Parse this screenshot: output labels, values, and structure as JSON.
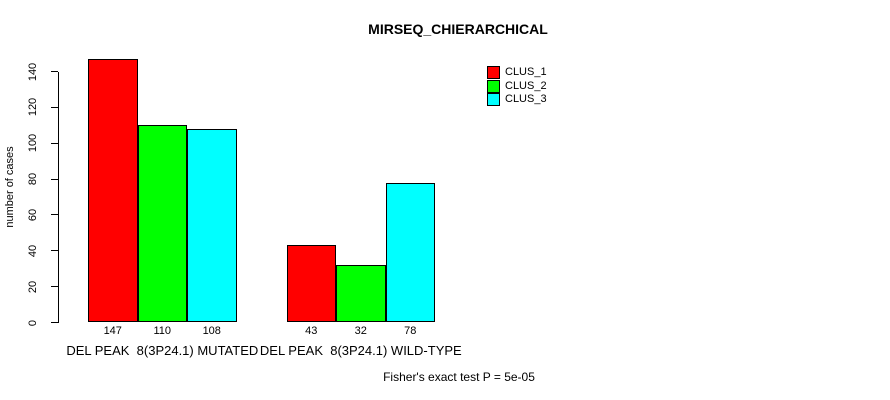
{
  "chart_data": {
    "type": "bar",
    "title": "MIRSEQ_CHIERARCHICAL",
    "ylabel": "number of cases",
    "xlabel": "",
    "categories": [
      "DEL PEAK  8(3P24.1) MUTATED",
      "DEL PEAK  8(3P24.1) WILD-TYPE"
    ],
    "series": [
      {
        "name": "CLUS_1",
        "color": "#ff0000",
        "values": [
          147,
          43
        ]
      },
      {
        "name": "CLUS_2",
        "color": "#00ff00",
        "values": [
          110,
          32
        ]
      },
      {
        "name": "CLUS_3",
        "color": "#00ffff",
        "values": [
          108,
          78
        ]
      }
    ],
    "bar_value_labels_shown": true,
    "ylim": [
      0,
      140
    ],
    "yticks": [
      0,
      20,
      40,
      60,
      80,
      100,
      120,
      140
    ],
    "grid": false,
    "legend_position": "top-right",
    "bar_border_color": "#000000",
    "annotation": "Fisher's exact test P = 5e-05"
  }
}
